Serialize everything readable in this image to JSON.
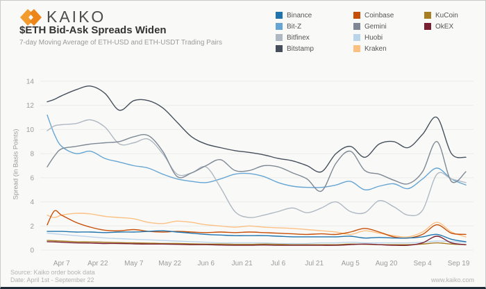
{
  "header": {
    "logo_text": "KAIKO",
    "title": "$ETH Bid-Ask Spreads Widen",
    "subtitle": "7-day Moving Average of ETH-USD and ETH-USDT Trading Pairs"
  },
  "footer": {
    "source": "Source: Kaiko order book data",
    "date": "Date: April 1st - September 22",
    "website": "www.kaiko.com"
  },
  "legend": {
    "columns": [
      [
        "Binance",
        "Bit-Z",
        "Bitfinex",
        "Bitstamp"
      ],
      [
        "Coinbase",
        "Gemini",
        "Huobi",
        "Kraken"
      ],
      [
        "KuCoin",
        "OkEX"
      ]
    ]
  },
  "chart_data": {
    "type": "line",
    "title": "$ETH Bid-Ask Spreads Widen",
    "subtitle": "7-day Moving Average of ETH-USD and ETH-USDT Trading Pairs",
    "ylabel": "Spread (in Basis Points)",
    "ylim": [
      0,
      14
    ],
    "yticks": [
      0,
      2,
      4,
      6,
      8,
      10,
      12,
      14
    ],
    "grid": true,
    "legend_position": "top-right",
    "x_unit": "days since April 1",
    "x_days": [
      0,
      3,
      6,
      12,
      18,
      24,
      30,
      36,
      42,
      48,
      54,
      60,
      66,
      72,
      78,
      84,
      90,
      96,
      102,
      108,
      114,
      120,
      126,
      132,
      138,
      144,
      150,
      156,
      162,
      168,
      174
    ],
    "xticks": {
      "days": [
        6,
        21,
        36,
        51,
        66,
        81,
        96,
        111,
        126,
        141,
        156,
        171
      ],
      "labels": [
        "Apr 7",
        "Apr 22",
        "May 7",
        "May 22",
        "Jun 6",
        "Jun 21",
        "Jul 6",
        "Jul 21",
        "Aug 5",
        "Aug 20",
        "Sep 4",
        "Sep 19"
      ]
    },
    "draw_order": [
      "Huobi",
      "KuCoin",
      "OkEX",
      "Kraken",
      "Coinbase",
      "Binance",
      "Bit-Z",
      "Bitfinex",
      "Gemini",
      "Bitstamp"
    ],
    "series": [
      {
        "name": "Binance",
        "color": "#1f74ad",
        "values": [
          1.55,
          1.55,
          1.55,
          1.5,
          1.5,
          1.45,
          1.5,
          1.5,
          1.55,
          1.6,
          1.5,
          1.4,
          1.3,
          1.25,
          1.2,
          1.2,
          1.2,
          1.15,
          1.1,
          1.1,
          1.1,
          1.1,
          1.15,
          1.0,
          1.05,
          1.0,
          1.0,
          1.1,
          1.3,
          0.9,
          0.7
        ]
      },
      {
        "name": "Bit-Z",
        "color": "#64a5d4",
        "values": [
          11.2,
          9.6,
          8.6,
          8.0,
          8.2,
          7.6,
          7.3,
          7.0,
          6.8,
          6.3,
          5.9,
          5.7,
          5.6,
          5.9,
          6.3,
          6.35,
          6.1,
          5.6,
          5.3,
          5.2,
          5.2,
          5.4,
          5.7,
          5.0,
          5.3,
          5.5,
          5.1,
          5.9,
          6.8,
          5.9,
          5.4
        ]
      },
      {
        "name": "Bitfinex",
        "color": "#aeb8c2",
        "values": [
          9.9,
          10.3,
          10.4,
          10.5,
          10.8,
          10.2,
          8.8,
          8.9,
          9.2,
          8.0,
          6.3,
          6.4,
          6.9,
          5.2,
          3.2,
          2.7,
          2.9,
          3.2,
          3.5,
          3.1,
          3.5,
          4.0,
          3.2,
          3.1,
          4.1,
          3.6,
          2.9,
          3.3,
          6.3,
          5.9,
          5.6
        ]
      },
      {
        "name": "Bitstamp",
        "color": "#454f5b",
        "values": [
          12.3,
          12.5,
          12.8,
          13.3,
          13.6,
          13.0,
          11.6,
          12.4,
          12.4,
          11.8,
          10.6,
          9.4,
          8.8,
          8.5,
          8.25,
          8.1,
          7.9,
          7.6,
          7.4,
          7.0,
          6.5,
          8.0,
          8.6,
          7.7,
          8.8,
          9.0,
          8.5,
          9.6,
          11.0,
          8.0,
          7.7
        ]
      },
      {
        "name": "Coinbase",
        "color": "#c74e06",
        "values": [
          2.1,
          3.25,
          2.9,
          2.3,
          1.9,
          1.65,
          1.6,
          1.7,
          1.55,
          1.5,
          1.55,
          1.5,
          1.45,
          1.5,
          1.45,
          1.5,
          1.45,
          1.4,
          1.35,
          1.3,
          1.35,
          1.3,
          1.5,
          1.8,
          1.5,
          1.1,
          1.0,
          1.3,
          2.1,
          1.4,
          1.3
        ]
      },
      {
        "name": "Gemini",
        "color": "#7d8894",
        "values": [
          6.9,
          7.8,
          8.4,
          8.6,
          8.8,
          8.9,
          9.0,
          9.4,
          9.5,
          8.2,
          6.1,
          6.4,
          7.0,
          7.5,
          6.6,
          6.6,
          7.0,
          6.9,
          6.4,
          5.9,
          4.9,
          7.2,
          8.2,
          6.6,
          6.3,
          5.8,
          5.5,
          6.5,
          9.0,
          5.7,
          6.5
        ]
      },
      {
        "name": "Huobi",
        "color": "#bad4ea",
        "values": [
          1.4,
          1.35,
          1.3,
          1.2,
          1.1,
          1.0,
          0.95,
          0.9,
          0.85,
          0.8,
          0.75,
          0.7,
          0.65,
          0.6,
          0.6,
          0.6,
          0.6,
          0.55,
          0.55,
          0.55,
          0.6,
          0.6,
          0.65,
          0.6,
          0.6,
          0.6,
          0.6,
          0.65,
          0.75,
          0.7,
          0.65
        ]
      },
      {
        "name": "Kraken",
        "color": "#fcc083",
        "values": [
          2.9,
          2.7,
          2.9,
          3.05,
          3.0,
          2.8,
          2.7,
          2.6,
          2.3,
          2.2,
          2.4,
          2.3,
          2.1,
          2.0,
          1.9,
          2.0,
          1.9,
          1.85,
          1.8,
          1.7,
          1.6,
          1.5,
          1.3,
          1.6,
          1.4,
          1.2,
          1.1,
          1.5,
          2.3,
          1.5,
          1.1
        ]
      },
      {
        "name": "KuCoin",
        "color": "#a87e23",
        "values": [
          0.8,
          0.78,
          0.75,
          0.7,
          0.68,
          0.65,
          0.62,
          0.6,
          0.58,
          0.55,
          0.55,
          0.52,
          0.5,
          0.5,
          0.48,
          0.48,
          0.5,
          0.48,
          0.45,
          0.45,
          0.45,
          0.45,
          0.5,
          0.48,
          0.45,
          0.45,
          0.45,
          0.5,
          0.6,
          0.5,
          0.45
        ]
      },
      {
        "name": "OkEX",
        "color": "#7a1f31",
        "values": [
          0.7,
          0.68,
          0.65,
          0.6,
          0.58,
          0.55,
          0.55,
          0.52,
          0.5,
          0.5,
          0.48,
          0.45,
          0.45,
          0.42,
          0.4,
          0.4,
          0.42,
          0.4,
          0.4,
          0.4,
          0.4,
          0.4,
          0.45,
          0.5,
          0.45,
          0.4,
          0.4,
          0.6,
          1.15,
          0.6,
          0.45
        ]
      }
    ]
  }
}
